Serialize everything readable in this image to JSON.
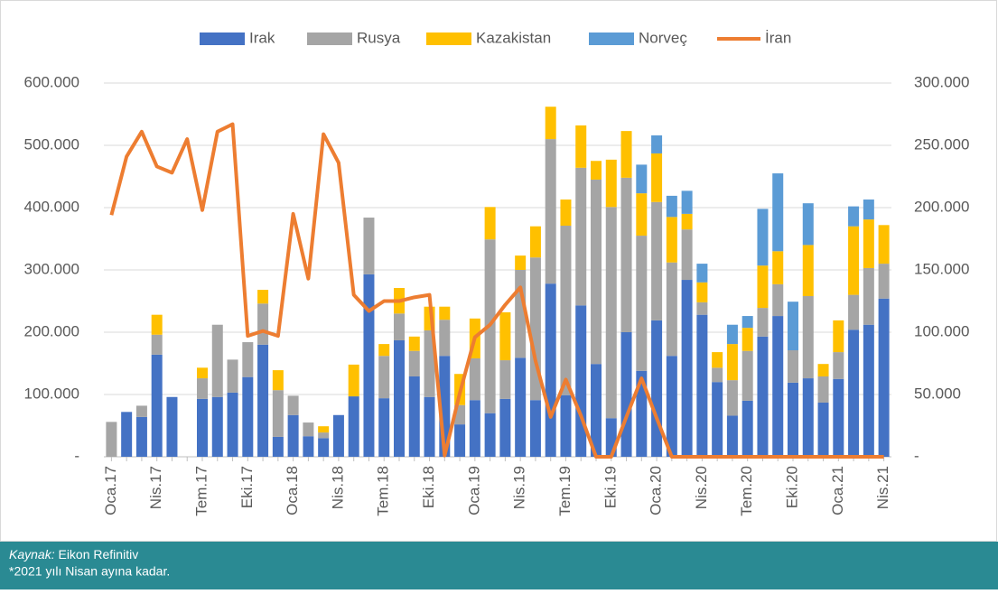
{
  "chart_data": {
    "type": "bar",
    "stacked": true,
    "categories": [
      "Oca.17",
      null,
      null,
      "Nis.17",
      null,
      null,
      "Tem.17",
      null,
      null,
      "Eki.17",
      null,
      null,
      "Oca.18",
      null,
      null,
      "Nis.18",
      null,
      null,
      "Tem.18",
      null,
      null,
      "Eki.18",
      null,
      null,
      "Oca.19",
      null,
      null,
      "Nis.19",
      null,
      null,
      "Tem.19",
      null,
      null,
      "Eki.19",
      null,
      null,
      "Oca.20",
      null,
      null,
      "Nis.20",
      null,
      null,
      "Tem.20",
      null,
      null,
      "Eki.20",
      null,
      null,
      "Oca.21",
      null,
      null,
      "Nis.21"
    ],
    "series": [
      {
        "name": "Irak",
        "color": "#4472c4",
        "values": [
          0,
          72000,
          64000,
          164000,
          96000,
          0,
          93000,
          96000,
          103000,
          128000,
          180000,
          32000,
          67000,
          33000,
          30000,
          67000,
          97000,
          293000,
          94000,
          187000,
          129000,
          96000,
          162000,
          52000,
          91000,
          70000,
          93000,
          159000,
          91000,
          278000,
          99000,
          243000,
          149000,
          62000,
          200000,
          138000,
          219000,
          162000,
          284000,
          228000,
          120000,
          66000,
          90000,
          193000,
          226000,
          119000,
          126000,
          87000,
          125000,
          204000,
          212000,
          254000
        ]
      },
      {
        "name": "Rusya",
        "color": "#a5a5a5",
        "values": [
          56000,
          0,
          18000,
          32000,
          0,
          0,
          33000,
          116000,
          53000,
          56000,
          66000,
          75000,
          31000,
          22000,
          9000,
          0,
          0,
          91000,
          68000,
          43000,
          41000,
          107000,
          58000,
          31000,
          67000,
          279000,
          62000,
          141000,
          229000,
          232000,
          272000,
          221000,
          296000,
          339000,
          248000,
          217000,
          190000,
          150000,
          81000,
          20000,
          23000,
          57000,
          80000,
          46000,
          51000,
          52000,
          132000,
          42000,
          43000,
          56000,
          91000,
          56000
        ]
      },
      {
        "name": "Kazakistan",
        "color": "#ffc000",
        "values": [
          0,
          0,
          0,
          32000,
          0,
          0,
          17000,
          0,
          0,
          0,
          22000,
          32000,
          0,
          0,
          10000,
          0,
          51000,
          0,
          19000,
          41000,
          23000,
          38000,
          21000,
          50000,
          64000,
          52000,
          77000,
          23000,
          50000,
          52000,
          42000,
          68000,
          30000,
          76000,
          75000,
          68000,
          78000,
          73000,
          25000,
          32000,
          25000,
          58000,
          37000,
          68000,
          53000,
          0,
          82000,
          20000,
          51000,
          110000,
          78000,
          62000
        ]
      },
      {
        "name": "Norveç",
        "color": "#5b9bd5",
        "values": [
          0,
          0,
          0,
          0,
          0,
          0,
          0,
          0,
          0,
          0,
          0,
          0,
          0,
          0,
          0,
          0,
          0,
          0,
          0,
          0,
          0,
          0,
          0,
          0,
          0,
          0,
          0,
          0,
          0,
          0,
          0,
          0,
          0,
          0,
          0,
          46000,
          29000,
          34000,
          37000,
          30000,
          0,
          31000,
          19000,
          91000,
          125000,
          78000,
          67000,
          0,
          0,
          32000,
          32000,
          0
        ]
      },
      {
        "name": "İran",
        "color": "#ed7d31",
        "type": "line",
        "axis": "y2",
        "values": [
          194000,
          241000,
          261000,
          233000,
          228000,
          255000,
          198000,
          261000,
          267000,
          97000,
          101000,
          97000,
          195000,
          143000,
          259000,
          236000,
          130000,
          117000,
          125000,
          125000,
          128000,
          130000,
          1000,
          51000,
          96000,
          106000,
          122000,
          136000,
          77000,
          32000,
          62000,
          33000,
          0,
          0,
          32000,
          63000,
          31000,
          0,
          0,
          0,
          0,
          0,
          0,
          0,
          0,
          0,
          0,
          0,
          0,
          0,
          0,
          0
        ]
      }
    ],
    "ylim": [
      0,
      600000
    ],
    "yticks": [
      {
        "value": 0,
        "label": "-"
      },
      {
        "value": 100000,
        "label": "100.000"
      },
      {
        "value": 200000,
        "label": "200.000"
      },
      {
        "value": 300000,
        "label": "300.000"
      },
      {
        "value": 400000,
        "label": "400.000"
      },
      {
        "value": 500000,
        "label": "500.000"
      },
      {
        "value": 600000,
        "label": "600.000"
      }
    ],
    "y2lim": [
      0,
      300000
    ],
    "y2ticks": [
      {
        "value": 0,
        "label": "-"
      },
      {
        "value": 50000,
        "label": "50.000"
      },
      {
        "value": 100000,
        "label": "100.000"
      },
      {
        "value": 150000,
        "label": "150.000"
      },
      {
        "value": 200000,
        "label": "200.000"
      },
      {
        "value": 250000,
        "label": "250.000"
      },
      {
        "value": 300000,
        "label": "300.000"
      }
    ],
    "grid": true,
    "legend": "top"
  },
  "footer": {
    "source_label": "Kaynak:",
    "source": "Eikon Refinitiv",
    "note": "*2021 yılı Nisan ayına kadar."
  }
}
